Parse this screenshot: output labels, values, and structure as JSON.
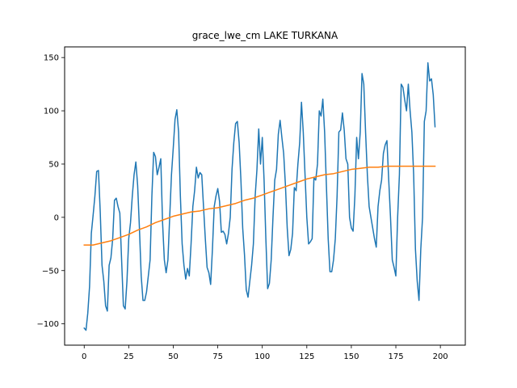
{
  "chart_data": {
    "type": "line",
    "title": "grace_lwe_cm LAKE TURKANA",
    "xlabel": "",
    "ylabel": "",
    "xlim": [
      -11,
      214
    ],
    "ylim": [
      -120,
      160
    ],
    "xticks": [
      0,
      25,
      50,
      75,
      100,
      125,
      150,
      175,
      200
    ],
    "yticks": [
      -100,
      -50,
      0,
      50,
      100,
      150
    ],
    "grid": false,
    "colors": {
      "series_1": "#1f77b4",
      "series_2": "#ff7f0e"
    },
    "series": [
      {
        "points": [
          [
            0,
            -104
          ],
          [
            1,
            -106
          ],
          [
            2,
            -90
          ],
          [
            3,
            -65
          ],
          [
            4,
            -15
          ],
          [
            5,
            2
          ],
          [
            6,
            20
          ],
          [
            7,
            43
          ],
          [
            8,
            44
          ],
          [
            9,
            5
          ],
          [
            10,
            -45
          ],
          [
            11,
            -60
          ],
          [
            12,
            -83
          ],
          [
            13,
            -88
          ],
          [
            14,
            -45
          ],
          [
            15,
            -38
          ],
          [
            16,
            -20
          ],
          [
            17,
            16
          ],
          [
            18,
            18
          ],
          [
            19,
            10
          ],
          [
            20,
            4
          ],
          [
            21,
            -40
          ],
          [
            22,
            -83
          ],
          [
            23,
            -86
          ],
          [
            24,
            -60
          ],
          [
            25,
            -20
          ],
          [
            26,
            -5
          ],
          [
            27,
            20
          ],
          [
            28,
            40
          ],
          [
            29,
            52
          ],
          [
            30,
            30
          ],
          [
            31,
            -10
          ],
          [
            32,
            -55
          ],
          [
            33,
            -78
          ],
          [
            34,
            -78
          ],
          [
            35,
            -70
          ],
          [
            36,
            -55
          ],
          [
            37,
            -40
          ],
          [
            38,
            20
          ],
          [
            39,
            61
          ],
          [
            40,
            57
          ],
          [
            41,
            40
          ],
          [
            42,
            47
          ],
          [
            43,
            55
          ],
          [
            44,
            -5
          ],
          [
            45,
            -40
          ],
          [
            46,
            -52
          ],
          [
            47,
            -40
          ],
          [
            48,
            0
          ],
          [
            49,
            40
          ],
          [
            50,
            65
          ],
          [
            51,
            92
          ],
          [
            52,
            101
          ],
          [
            53,
            80
          ],
          [
            54,
            20
          ],
          [
            55,
            -25
          ],
          [
            56,
            -45
          ],
          [
            57,
            -58
          ],
          [
            58,
            -48
          ],
          [
            59,
            -55
          ],
          [
            60,
            -25
          ],
          [
            61,
            10
          ],
          [
            62,
            25
          ],
          [
            63,
            47
          ],
          [
            64,
            37
          ],
          [
            65,
            42
          ],
          [
            66,
            40
          ],
          [
            67,
            10
          ],
          [
            68,
            -20
          ],
          [
            69,
            -47
          ],
          [
            70,
            -52
          ],
          [
            71,
            -63
          ],
          [
            72,
            -30
          ],
          [
            73,
            10
          ],
          [
            74,
            20
          ],
          [
            75,
            27
          ],
          [
            76,
            15
          ],
          [
            77,
            -14
          ],
          [
            78,
            -13
          ],
          [
            79,
            -16
          ],
          [
            80,
            -25
          ],
          [
            81,
            -15
          ],
          [
            82,
            0
          ],
          [
            83,
            45
          ],
          [
            84,
            70
          ],
          [
            85,
            88
          ],
          [
            86,
            90
          ],
          [
            87,
            70
          ],
          [
            88,
            35
          ],
          [
            89,
            -10
          ],
          [
            90,
            -35
          ],
          [
            91,
            -68
          ],
          [
            92,
            -75
          ],
          [
            93,
            -60
          ],
          [
            94,
            -45
          ],
          [
            95,
            -25
          ],
          [
            96,
            20
          ],
          [
            97,
            45
          ],
          [
            98,
            83
          ],
          [
            99,
            50
          ],
          [
            100,
            75
          ],
          [
            101,
            35
          ],
          [
            102,
            -20
          ],
          [
            103,
            -67
          ],
          [
            104,
            -62
          ],
          [
            105,
            -40
          ],
          [
            106,
            0
          ],
          [
            107,
            35
          ],
          [
            108,
            45
          ],
          [
            109,
            78
          ],
          [
            110,
            91
          ],
          [
            111,
            75
          ],
          [
            112,
            60
          ],
          [
            113,
            30
          ],
          [
            114,
            -10
          ],
          [
            115,
            -36
          ],
          [
            116,
            -30
          ],
          [
            117,
            -15
          ],
          [
            118,
            28
          ],
          [
            119,
            25
          ],
          [
            120,
            50
          ],
          [
            121,
            70
          ],
          [
            122,
            108
          ],
          [
            123,
            80
          ],
          [
            124,
            40
          ],
          [
            125,
            0
          ],
          [
            126,
            -25
          ],
          [
            127,
            -23
          ],
          [
            128,
            -20
          ],
          [
            129,
            37
          ],
          [
            130,
            35
          ],
          [
            131,
            50
          ],
          [
            132,
            100
          ],
          [
            133,
            95
          ],
          [
            134,
            111
          ],
          [
            135,
            80
          ],
          [
            136,
            30
          ],
          [
            137,
            -20
          ],
          [
            138,
            -51
          ],
          [
            139,
            -51
          ],
          [
            140,
            -40
          ],
          [
            141,
            -20
          ],
          [
            142,
            20
          ],
          [
            143,
            80
          ],
          [
            144,
            82
          ],
          [
            145,
            98
          ],
          [
            146,
            82
          ],
          [
            147,
            55
          ],
          [
            148,
            50
          ],
          [
            149,
            0
          ],
          [
            150,
            -10
          ],
          [
            151,
            -13
          ],
          [
            152,
            20
          ],
          [
            153,
            75
          ],
          [
            154,
            55
          ],
          [
            155,
            80
          ],
          [
            156,
            135
          ],
          [
            157,
            125
          ],
          [
            158,
            80
          ],
          [
            159,
            40
          ],
          [
            160,
            10
          ],
          [
            161,
            0
          ],
          [
            162,
            -10
          ],
          [
            163,
            -20
          ],
          [
            164,
            -28
          ],
          [
            165,
            10
          ],
          [
            166,
            25
          ],
          [
            167,
            35
          ],
          [
            168,
            60
          ],
          [
            169,
            68
          ],
          [
            170,
            72
          ],
          [
            171,
            35
          ],
          [
            172,
            0
          ],
          [
            173,
            -40
          ],
          [
            174,
            -47
          ],
          [
            175,
            -55
          ],
          [
            176,
            0
          ],
          [
            177,
            40
          ],
          [
            178,
            125
          ],
          [
            179,
            122
          ],
          [
            180,
            110
          ],
          [
            181,
            100
          ],
          [
            182,
            125
          ],
          [
            183,
            100
          ],
          [
            184,
            80
          ],
          [
            185,
            40
          ],
          [
            186,
            -30
          ],
          [
            187,
            -60
          ],
          [
            188,
            -78
          ],
          [
            189,
            -30
          ],
          [
            190,
            0
          ],
          [
            191,
            90
          ],
          [
            192,
            100
          ],
          [
            193,
            145
          ],
          [
            194,
            128
          ],
          [
            195,
            130
          ],
          [
            196,
            115
          ],
          [
            197,
            85
          ]
        ]
      },
      {
        "points": [
          [
            0,
            -26
          ],
          [
            5,
            -26
          ],
          [
            10,
            -24
          ],
          [
            15,
            -22
          ],
          [
            20,
            -19
          ],
          [
            25,
            -16
          ],
          [
            30,
            -12
          ],
          [
            35,
            -9
          ],
          [
            40,
            -5
          ],
          [
            45,
            -2
          ],
          [
            50,
            1
          ],
          [
            55,
            3
          ],
          [
            60,
            5
          ],
          [
            65,
            6
          ],
          [
            70,
            8
          ],
          [
            75,
            9
          ],
          [
            80,
            11
          ],
          [
            85,
            13
          ],
          [
            90,
            16
          ],
          [
            95,
            18
          ],
          [
            100,
            21
          ],
          [
            105,
            24
          ],
          [
            110,
            27
          ],
          [
            115,
            30
          ],
          [
            120,
            33
          ],
          [
            125,
            36
          ],
          [
            130,
            38
          ],
          [
            135,
            40
          ],
          [
            140,
            41
          ],
          [
            145,
            43
          ],
          [
            150,
            45
          ],
          [
            155,
            46
          ],
          [
            160,
            47
          ],
          [
            165,
            47
          ],
          [
            170,
            48
          ],
          [
            175,
            48
          ],
          [
            180,
            48
          ],
          [
            185,
            48
          ],
          [
            190,
            48
          ],
          [
            195,
            48
          ],
          [
            197,
            48
          ]
        ]
      }
    ]
  }
}
